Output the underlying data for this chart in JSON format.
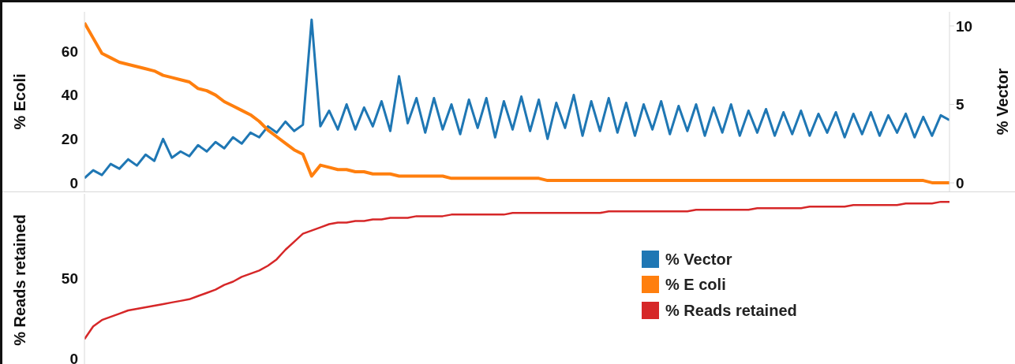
{
  "chart_data": [
    {
      "type": "line",
      "ylabel": "% Ecoli",
      "y2label": "% Vector",
      "ylim": [
        -4,
        78
      ],
      "yticks": [
        0,
        20,
        40,
        60
      ],
      "y2lim": [
        -0.55,
        10.9
      ],
      "y2ticks": [
        0,
        5,
        10
      ],
      "tick_labels": "y",
      "legend": "bottom",
      "categories": [
        null,
        null,
        null,
        null,
        null,
        null,
        null,
        null,
        null,
        null,
        null,
        null,
        null,
        null,
        null,
        null,
        null,
        null,
        null,
        null,
        null,
        null,
        null,
        null,
        null,
        null,
        null,
        null,
        null,
        null,
        null,
        null,
        null,
        null,
        null,
        null,
        null,
        null,
        null,
        null,
        null,
        null,
        null,
        null,
        null,
        null,
        null,
        null,
        null,
        null,
        null,
        null,
        null,
        null,
        null,
        null,
        null,
        null,
        null,
        null,
        null,
        null,
        null,
        null,
        null,
        null,
        null,
        null,
        null,
        null,
        null,
        null,
        null,
        null,
        null,
        null,
        null,
        null,
        null,
        null,
        null,
        null,
        null,
        null,
        null,
        null,
        null,
        null,
        null,
        null,
        null,
        null,
        null,
        null,
        null,
        null,
        null,
        null,
        null,
        null
      ],
      "series": [
        {
          "name": "% Vector",
          "color": "#1f77b4",
          "axis": "y2",
          "values": [
            0.3,
            0.8,
            0.5,
            1.2,
            0.9,
            1.5,
            1.1,
            1.8,
            1.4,
            2.8,
            1.6,
            2.0,
            1.7,
            2.4,
            2.0,
            2.6,
            2.2,
            2.9,
            2.5,
            3.2,
            2.9,
            3.6,
            3.2,
            3.9,
            3.3,
            3.7,
            10.4,
            3.6,
            4.6,
            3.4,
            5.0,
            3.4,
            4.8,
            3.6,
            5.2,
            3.3,
            6.8,
            3.8,
            5.4,
            3.2,
            5.4,
            3.4,
            5.0,
            3.1,
            5.3,
            3.5,
            5.4,
            2.9,
            5.2,
            3.4,
            5.5,
            3.3,
            5.3,
            2.8,
            5.1,
            3.5,
            5.6,
            3.0,
            5.2,
            3.3,
            5.4,
            3.2,
            5.1,
            3.0,
            5.0,
            3.4,
            5.2,
            3.1,
            4.9,
            3.3,
            5.0,
            3.0,
            4.8,
            3.2,
            5.0,
            3.0,
            4.6,
            3.2,
            4.7,
            3.0,
            4.5,
            3.1,
            4.6,
            3.0,
            4.4,
            3.2,
            4.5,
            2.9,
            4.4,
            3.1,
            4.5,
            3.0,
            4.3,
            3.2,
            4.4,
            2.9,
            4.2,
            3.0,
            4.3,
            4.0
          ]
        },
        {
          "name": "% E coli",
          "color": "#ff7f0e",
          "values": [
            73,
            66,
            59,
            57,
            55,
            54,
            53,
            52,
            51,
            49,
            48,
            47,
            46,
            43,
            42,
            40,
            37,
            35,
            33,
            31,
            28,
            24,
            21,
            18,
            15,
            13,
            3,
            8,
            7,
            6,
            6,
            5,
            5,
            4,
            4,
            4,
            3,
            3,
            3,
            3,
            3,
            3,
            2,
            2,
            2,
            2,
            2,
            2,
            2,
            2,
            2,
            2,
            2,
            1,
            1,
            1,
            1,
            1,
            1,
            1,
            1,
            1,
            1,
            1,
            1,
            1,
            1,
            1,
            1,
            1,
            1,
            1,
            1,
            1,
            1,
            1,
            1,
            1,
            1,
            1,
            1,
            1,
            1,
            1,
            1,
            1,
            1,
            1,
            1,
            1,
            1,
            1,
            1,
            1,
            1,
            1,
            1,
            0,
            0,
            0
          ]
        }
      ]
    },
    {
      "type": "line",
      "ylabel": "% Reads retained",
      "ylim": [
        -5,
        103
      ],
      "yticks": [
        0,
        50
      ],
      "tick_labels": "y",
      "legend": "right",
      "categories": [
        null,
        null,
        null,
        null,
        null,
        null,
        null,
        null,
        null,
        null,
        null,
        null,
        null,
        null,
        null,
        null,
        null,
        null,
        null,
        null,
        null,
        null,
        null,
        null,
        null,
        null,
        null,
        null,
        null,
        null,
        null,
        null,
        null,
        null,
        null,
        null,
        null,
        null,
        null,
        null,
        null,
        null,
        null,
        null,
        null,
        null,
        null,
        null,
        null,
        null,
        null,
        null,
        null,
        null,
        null,
        null,
        null,
        null,
        null,
        null,
        null,
        null,
        null,
        null,
        null,
        null,
        null,
        null,
        null,
        null,
        null,
        null,
        null,
        null,
        null,
        null,
        null,
        null,
        null,
        null,
        null,
        null,
        null,
        null,
        null,
        null,
        null,
        null,
        null,
        null,
        null,
        null,
        null,
        null,
        null,
        null,
        null,
        null,
        null,
        null
      ],
      "series": [
        {
          "name": "% Reads retained",
          "color": "#d62728",
          "values": [
            12,
            20,
            24,
            26,
            28,
            30,
            31,
            32,
            33,
            34,
            35,
            36,
            37,
            39,
            41,
            43,
            46,
            48,
            51,
            53,
            55,
            58,
            62,
            68,
            73,
            78,
            80,
            82,
            84,
            85,
            85,
            86,
            86,
            87,
            87,
            88,
            88,
            88,
            89,
            89,
            89,
            89,
            90,
            90,
            90,
            90,
            90,
            90,
            90,
            91,
            91,
            91,
            91,
            91,
            91,
            91,
            91,
            91,
            91,
            91,
            92,
            92,
            92,
            92,
            92,
            92,
            92,
            92,
            92,
            92,
            93,
            93,
            93,
            93,
            93,
            93,
            93,
            94,
            94,
            94,
            94,
            94,
            94,
            95,
            95,
            95,
            95,
            95,
            96,
            96,
            96,
            96,
            96,
            96,
            97,
            97,
            97,
            97,
            98,
            98
          ]
        }
      ]
    }
  ]
}
